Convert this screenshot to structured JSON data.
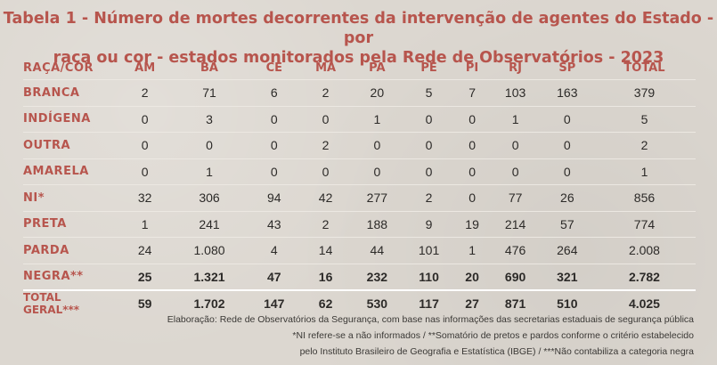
{
  "title": {
    "line1": "Tabela 1 - Número de mortes decorrentes da intervenção de agentes do Estado - por",
    "line2": "raça ou cor - estados monitorados pela Rede de Observatórios - 2023"
  },
  "table": {
    "headers": [
      "RAÇA/COR",
      "AM",
      "BA",
      "CE",
      "MA",
      "PA",
      "PE",
      "PI",
      "RJ",
      "SP",
      "TOTAL"
    ],
    "rows": [
      {
        "label": "BRANCA",
        "values": [
          "2",
          "71",
          "6",
          "2",
          "20",
          "5",
          "7",
          "103",
          "163",
          "379"
        ]
      },
      {
        "label": "INDÍGENA",
        "values": [
          "0",
          "3",
          "0",
          "0",
          "1",
          "0",
          "0",
          "1",
          "0",
          "5"
        ]
      },
      {
        "label": "OUTRA",
        "values": [
          "0",
          "0",
          "0",
          "2",
          "0",
          "0",
          "0",
          "0",
          "0",
          "2"
        ]
      },
      {
        "label": "AMARELA",
        "values": [
          "0",
          "1",
          "0",
          "0",
          "0",
          "0",
          "0",
          "0",
          "0",
          "1"
        ]
      },
      {
        "label": "NI*",
        "values": [
          "32",
          "306",
          "94",
          "42",
          "277",
          "2",
          "0",
          "77",
          "26",
          "856"
        ]
      },
      {
        "label": "PRETA",
        "values": [
          "1",
          "241",
          "43",
          "2",
          "188",
          "9",
          "19",
          "214",
          "57",
          "774"
        ]
      },
      {
        "label": "PARDA",
        "values": [
          "24",
          "1.080",
          "4",
          "14",
          "44",
          "101",
          "1",
          "476",
          "264",
          "2.008"
        ]
      },
      {
        "label": "NEGRA**",
        "values": [
          "25",
          "1.321",
          "47",
          "16",
          "232",
          "110",
          "20",
          "690",
          "321",
          "2.782"
        ]
      },
      {
        "label": "TOTAL GERAL***",
        "values": [
          "59",
          "1.702",
          "147",
          "62",
          "530",
          "117",
          "27",
          "871",
          "510",
          "4.025"
        ]
      }
    ]
  },
  "notes": {
    "line1": "Elaboração: Rede de Observatórios da Segurança, com base nas informações das secretarias estaduais de segurança pública",
    "line2": "*NI refere-se a não informados / **Somatório de pretos e pardos conforme o critério estabelecido",
    "line3": "pelo Instituto Brasileiro de Geografia e Estatística (IBGE) /  ***Não contabiliza a categoria negra"
  }
}
